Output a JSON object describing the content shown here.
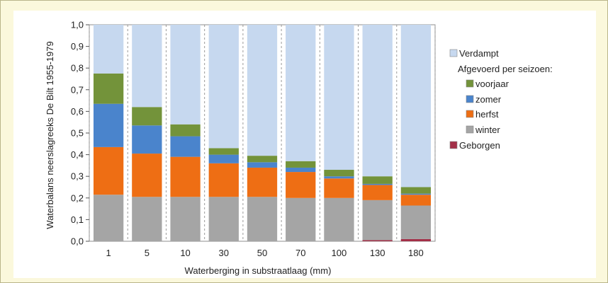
{
  "chart_data": {
    "type": "bar",
    "stacked": true,
    "xlabel": "Waterberging in substraatlaag (mm)",
    "ylabel": "Waterbalans neerslagreeks De Bilt 1955-1979",
    "ylim": [
      0,
      1.0
    ],
    "yticks": [
      "0,0",
      "0,1",
      "0,2",
      "0,3",
      "0,4",
      "0,5",
      "0,6",
      "0,7",
      "0,8",
      "0,9",
      "1,0"
    ],
    "categories": [
      "1",
      "5",
      "10",
      "30",
      "50",
      "70",
      "100",
      "130",
      "180"
    ],
    "legend_heading": "Afgevoerd per seizoen:",
    "legend_position": "right",
    "series": [
      {
        "name": "Geborgen",
        "color": "#a33048",
        "values": [
          0,
          0,
          0,
          0,
          0,
          0,
          0,
          0.005,
          0.01
        ]
      },
      {
        "name": "winter",
        "color": "#a5a5a5",
        "values": [
          0.215,
          0.205,
          0.205,
          0.205,
          0.205,
          0.2,
          0.2,
          0.185,
          0.155
        ]
      },
      {
        "name": "herfst",
        "color": "#ee6e14",
        "values": [
          0.22,
          0.2,
          0.185,
          0.155,
          0.135,
          0.12,
          0.09,
          0.07,
          0.05
        ]
      },
      {
        "name": "zomer",
        "color": "#4a84cc",
        "values": [
          0.2,
          0.13,
          0.095,
          0.04,
          0.025,
          0.02,
          0.01,
          0.005,
          0.005
        ]
      },
      {
        "name": "voorjaar",
        "color": "#73933a",
        "values": [
          0.14,
          0.085,
          0.055,
          0.03,
          0.03,
          0.03,
          0.03,
          0.035,
          0.03
        ]
      },
      {
        "name": "Verdampt",
        "color": "#c6d8ef",
        "values": [
          0.225,
          0.38,
          0.46,
          0.57,
          0.605,
          0.63,
          0.67,
          0.7,
          0.75
        ]
      }
    ]
  }
}
